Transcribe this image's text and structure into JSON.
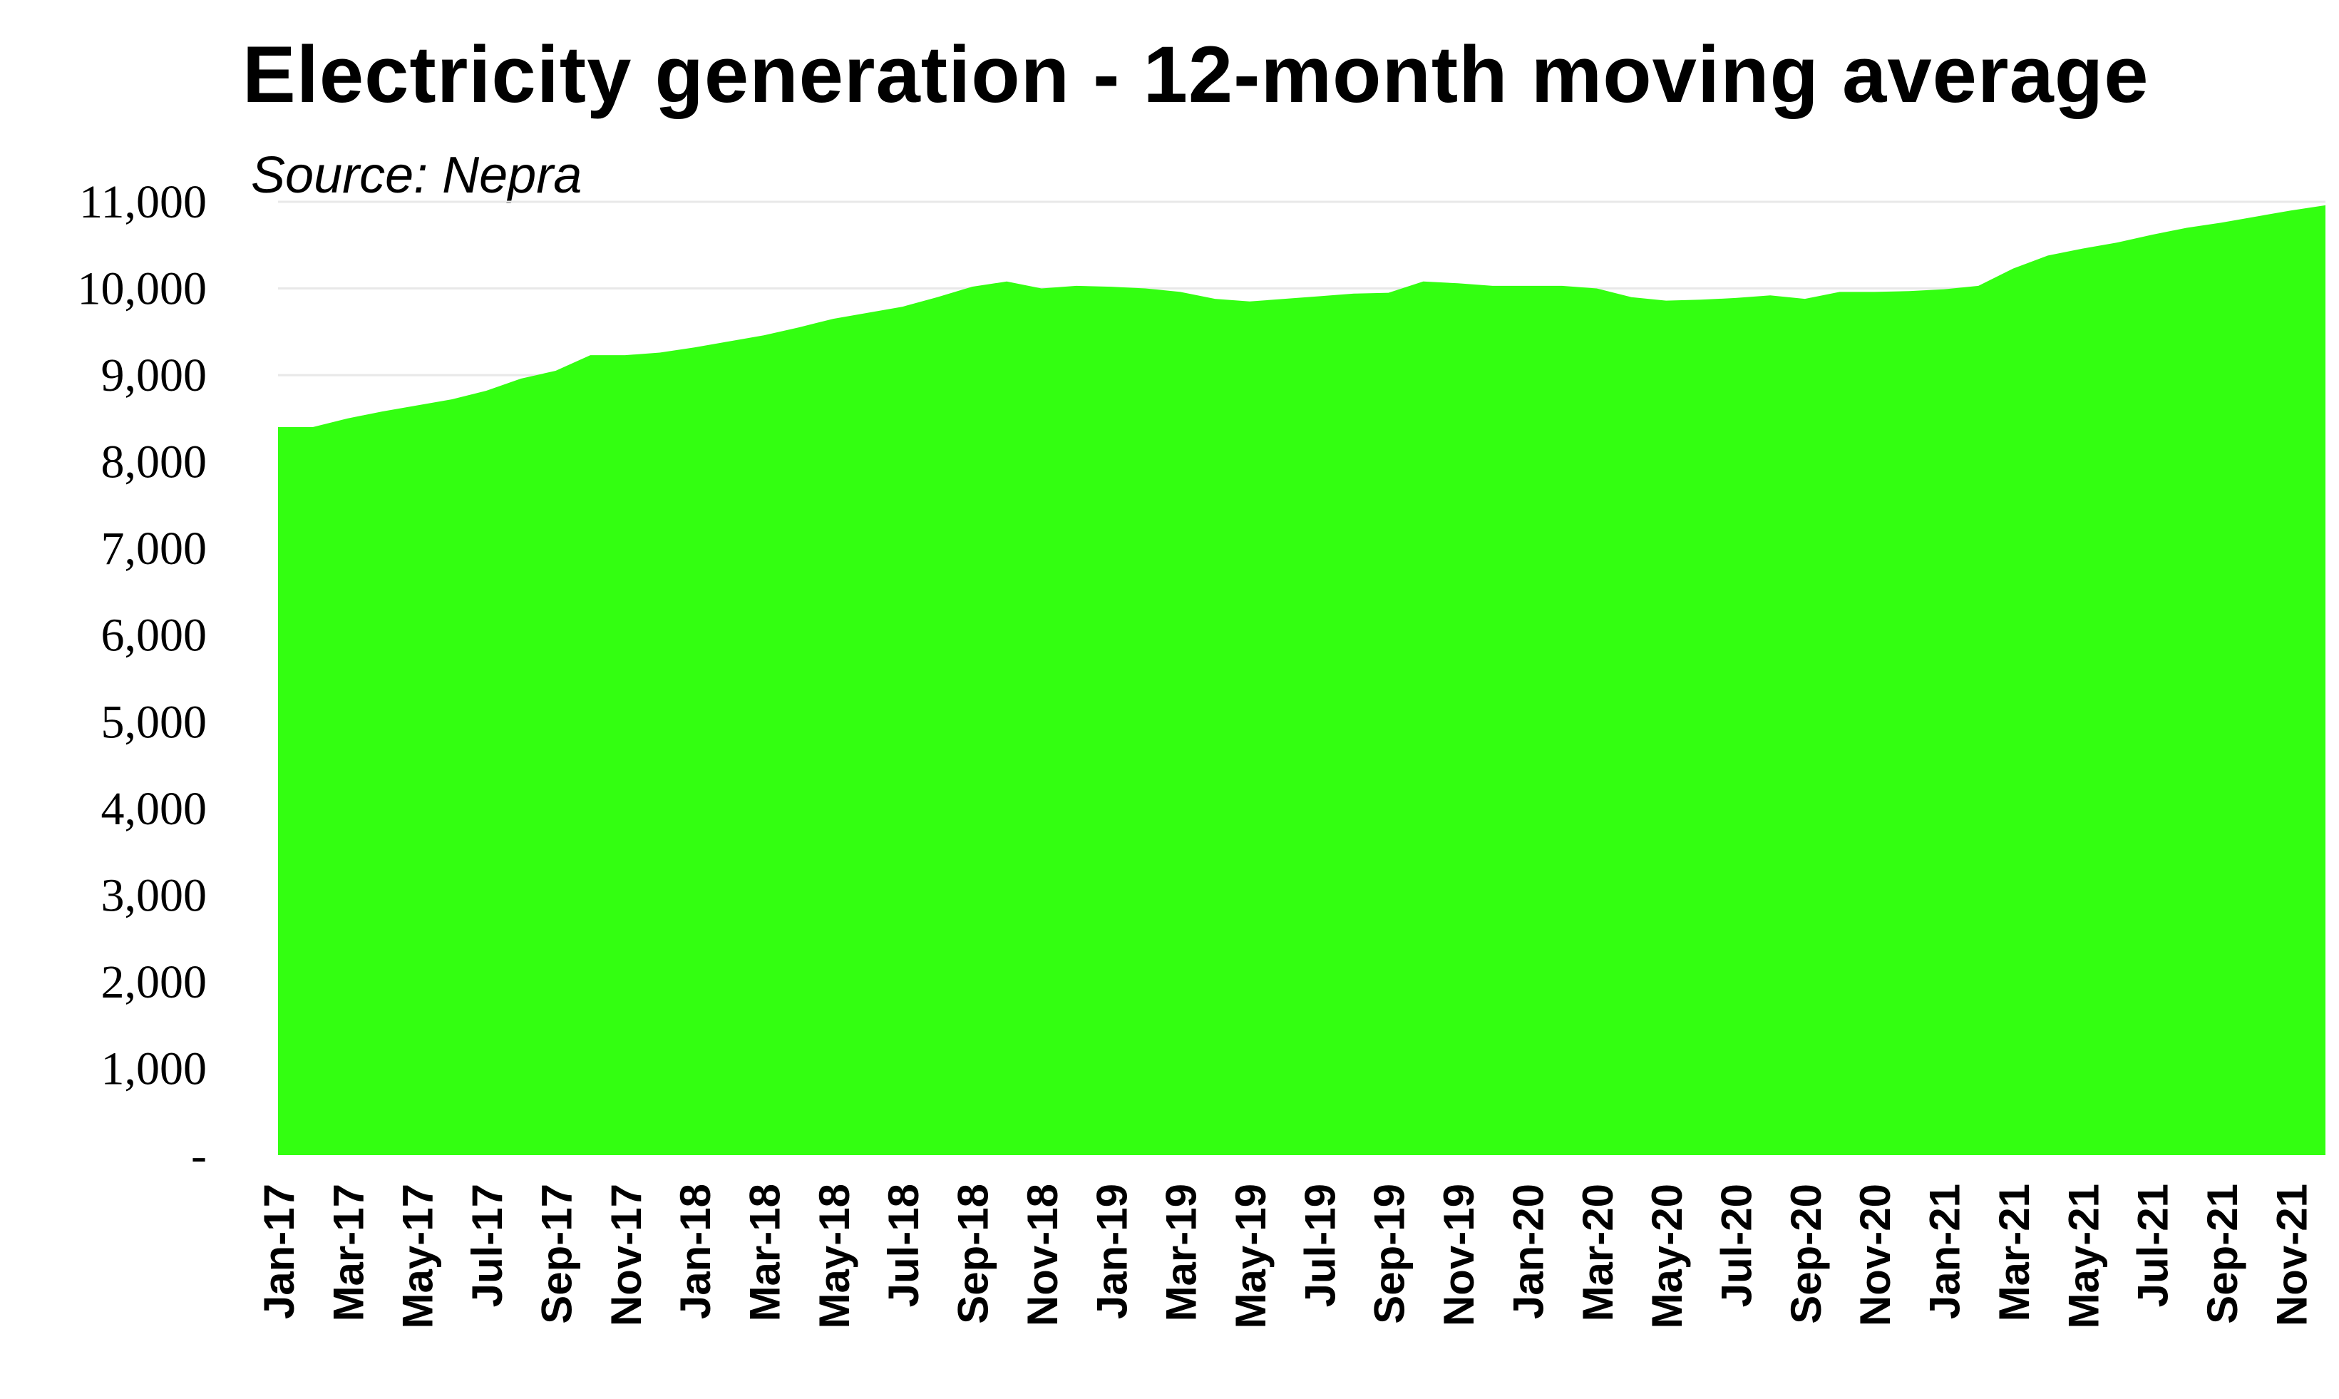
{
  "chart_data": {
    "type": "area",
    "title": "Electricity generation - 12-month moving average",
    "subtitle": "Source: Nepra",
    "xlabel": "",
    "ylabel": "",
    "ylim": [
      0,
      11000
    ],
    "y_ticks": [
      {
        "value": 0,
        "label": "-"
      },
      {
        "value": 1000,
        "label": "1,000"
      },
      {
        "value": 2000,
        "label": "2,000"
      },
      {
        "value": 3000,
        "label": "3,000"
      },
      {
        "value": 4000,
        "label": "4,000"
      },
      {
        "value": 5000,
        "label": "5,000"
      },
      {
        "value": 6000,
        "label": "6,000"
      },
      {
        "value": 7000,
        "label": "7,000"
      },
      {
        "value": 8000,
        "label": "8,000"
      },
      {
        "value": 9000,
        "label": "9,000"
      },
      {
        "value": 10000,
        "label": "10,000"
      },
      {
        "value": 11000,
        "label": "11,000"
      }
    ],
    "x_tick_labels": [
      "Jan-17",
      "Mar-17",
      "May-17",
      "Jul-17",
      "Sep-17",
      "Nov-17",
      "Jan-18",
      "Mar-18",
      "May-18",
      "Jul-18",
      "Sep-18",
      "Nov-18",
      "Jan-19",
      "Mar-19",
      "May-19",
      "Jul-19",
      "Sep-19",
      "Nov-19",
      "Jan-20",
      "Mar-20",
      "May-20",
      "Jul-20",
      "Sep-20",
      "Nov-20",
      "Jan-21",
      "Mar-21",
      "May-21",
      "Jul-21",
      "Sep-21",
      "Nov-21"
    ],
    "grid": true,
    "color": "#33ff11",
    "categories": [
      "Jan-17",
      "Feb-17",
      "Mar-17",
      "Apr-17",
      "May-17",
      "Jun-17",
      "Jul-17",
      "Aug-17",
      "Sep-17",
      "Oct-17",
      "Nov-17",
      "Dec-17",
      "Jan-18",
      "Feb-18",
      "Mar-18",
      "Apr-18",
      "May-18",
      "Jun-18",
      "Jul-18",
      "Aug-18",
      "Sep-18",
      "Oct-18",
      "Nov-18",
      "Dec-18",
      "Jan-19",
      "Feb-19",
      "Mar-19",
      "Apr-19",
      "May-19",
      "Jun-19",
      "Jul-19",
      "Aug-19",
      "Sep-19",
      "Oct-19",
      "Nov-19",
      "Dec-19",
      "Jan-20",
      "Feb-20",
      "Mar-20",
      "Apr-20",
      "May-20",
      "Jun-20",
      "Jul-20",
      "Aug-20",
      "Sep-20",
      "Oct-20",
      "Nov-20",
      "Dec-20",
      "Jan-21",
      "Feb-21",
      "Mar-21",
      "Apr-21",
      "May-21",
      "Jun-21",
      "Jul-21",
      "Aug-21",
      "Sep-21",
      "Oct-21",
      "Nov-21",
      "Dec-21"
    ],
    "values": [
      8400,
      8400,
      8500,
      8580,
      8650,
      8720,
      8820,
      8960,
      9050,
      9230,
      9230,
      9260,
      9320,
      9390,
      9460,
      9550,
      9650,
      9720,
      9790,
      9900,
      10020,
      10080,
      10000,
      10030,
      10020,
      10000,
      9960,
      9880,
      9850,
      9880,
      9910,
      9940,
      9950,
      10080,
      10060,
      10030,
      10030,
      10030,
      10000,
      9900,
      9860,
      9870,
      9890,
      9920,
      9880,
      9960,
      9960,
      9970,
      9990,
      10030,
      10230,
      10380,
      10460,
      10530,
      10620,
      10700,
      10760,
      10830,
      10900,
      10960
    ]
  }
}
